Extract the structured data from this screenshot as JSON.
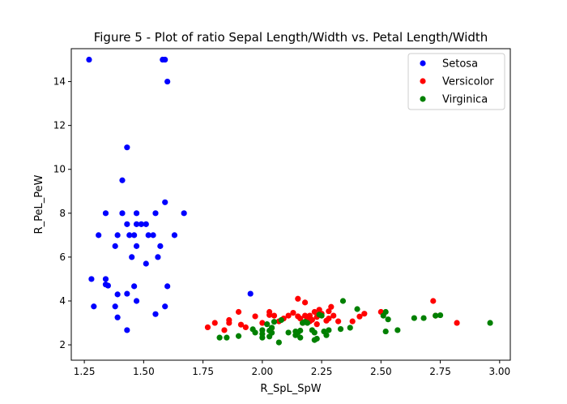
{
  "chart_data": {
    "type": "scatter",
    "title": "Figure 5 - Plot of ratio Sepal Length/Width vs. Petal Length/Width",
    "xlabel": "R_SpL_SpW",
    "ylabel": "R_PeL_PeW",
    "xlim": [
      1.195,
      3.045
    ],
    "ylim": [
      1.3,
      15.5
    ],
    "xticks": [
      1.25,
      1.5,
      1.75,
      2.0,
      2.25,
      2.5,
      2.75,
      3.0
    ],
    "xtick_labels": [
      "1.25",
      "1.50",
      "1.75",
      "2.00",
      "2.25",
      "2.50",
      "2.75",
      "3.00"
    ],
    "yticks": [
      2,
      4,
      6,
      8,
      10,
      12,
      14
    ],
    "ytick_labels": [
      "2",
      "4",
      "6",
      "8",
      "10",
      "12",
      "14"
    ],
    "grid": false,
    "legend_position": "top-right",
    "series": [
      {
        "name": "Setosa",
        "color": "#0000ff",
        "points": [
          [
            1.27,
            15.0
          ],
          [
            1.58,
            15.0
          ],
          [
            1.59,
            15.0
          ],
          [
            1.6,
            14.0
          ],
          [
            1.43,
            11.0
          ],
          [
            1.41,
            9.5
          ],
          [
            1.59,
            8.5
          ],
          [
            1.34,
            8.0
          ],
          [
            1.41,
            8.0
          ],
          [
            1.47,
            8.0
          ],
          [
            1.55,
            8.0
          ],
          [
            1.67,
            8.0
          ],
          [
            1.43,
            7.5
          ],
          [
            1.47,
            7.5
          ],
          [
            1.49,
            7.5
          ],
          [
            1.51,
            7.5
          ],
          [
            1.31,
            7.0
          ],
          [
            1.39,
            7.0
          ],
          [
            1.44,
            7.0
          ],
          [
            1.46,
            7.0
          ],
          [
            1.52,
            7.0
          ],
          [
            1.54,
            7.0
          ],
          [
            1.63,
            7.0
          ],
          [
            1.38,
            6.5
          ],
          [
            1.47,
            6.5
          ],
          [
            1.57,
            6.5
          ],
          [
            1.45,
            6.0
          ],
          [
            1.56,
            6.0
          ],
          [
            1.51,
            5.7
          ],
          [
            1.28,
            5.0
          ],
          [
            1.34,
            5.0
          ],
          [
            1.34,
            4.75
          ],
          [
            1.35,
            4.7
          ],
          [
            1.46,
            4.67
          ],
          [
            1.6,
            4.67
          ],
          [
            1.95,
            4.33
          ],
          [
            1.39,
            4.3
          ],
          [
            1.43,
            4.33
          ],
          [
            1.47,
            4.0
          ],
          [
            1.29,
            3.75
          ],
          [
            1.38,
            3.75
          ],
          [
            1.59,
            3.75
          ],
          [
            1.55,
            3.4
          ],
          [
            1.39,
            3.25
          ],
          [
            1.43,
            2.67
          ]
        ]
      },
      {
        "name": "Versicolor",
        "color": "#ff0000",
        "points": [
          [
            1.77,
            2.8
          ],
          [
            1.8,
            3.0
          ],
          [
            1.84,
            2.67
          ],
          [
            1.86,
            3.13
          ],
          [
            1.86,
            3.0
          ],
          [
            1.9,
            3.5
          ],
          [
            1.91,
            2.92
          ],
          [
            1.93,
            2.8
          ],
          [
            1.97,
            3.3
          ],
          [
            2.0,
            3.0
          ],
          [
            2.03,
            3.5
          ],
          [
            2.03,
            3.36
          ],
          [
            2.04,
            2.77
          ],
          [
            2.05,
            3.33
          ],
          [
            2.07,
            3.07
          ],
          [
            2.09,
            3.2
          ],
          [
            2.11,
            3.33
          ],
          [
            2.13,
            3.46
          ],
          [
            2.15,
            4.1
          ],
          [
            2.15,
            3.3
          ],
          [
            2.16,
            3.2
          ],
          [
            2.17,
            3.0
          ],
          [
            2.18,
            3.93
          ],
          [
            2.18,
            3.33
          ],
          [
            2.19,
            3.2
          ],
          [
            2.2,
            3.07
          ],
          [
            2.2,
            3.33
          ],
          [
            2.21,
            3.14
          ],
          [
            2.22,
            3.5
          ],
          [
            2.23,
            3.27
          ],
          [
            2.23,
            2.94
          ],
          [
            2.24,
            3.6
          ],
          [
            2.25,
            3.42
          ],
          [
            2.27,
            3.1
          ],
          [
            2.28,
            3.2
          ],
          [
            2.28,
            3.53
          ],
          [
            2.29,
            3.73
          ],
          [
            2.3,
            3.33
          ],
          [
            2.32,
            3.07
          ],
          [
            2.38,
            3.07
          ],
          [
            2.41,
            3.29
          ],
          [
            2.43,
            3.42
          ],
          [
            2.5,
            3.5
          ],
          [
            2.72,
            4.0
          ],
          [
            2.73,
            3.33
          ],
          [
            2.82,
            3.0
          ]
        ]
      },
      {
        "name": "Virginica",
        "color": "#008000",
        "points": [
          [
            1.82,
            2.33
          ],
          [
            1.85,
            2.33
          ],
          [
            1.9,
            2.4
          ],
          [
            1.96,
            2.71
          ],
          [
            1.97,
            2.56
          ],
          [
            2.0,
            2.33
          ],
          [
            2.0,
            2.5
          ],
          [
            2.0,
            2.67
          ],
          [
            2.02,
            2.94
          ],
          [
            2.03,
            2.38
          ],
          [
            2.03,
            2.65
          ],
          [
            2.04,
            2.55
          ],
          [
            2.04,
            2.78
          ],
          [
            2.05,
            3.05
          ],
          [
            2.07,
            2.11
          ],
          [
            2.08,
            3.13
          ],
          [
            2.11,
            2.56
          ],
          [
            2.14,
            2.61
          ],
          [
            2.14,
            2.44
          ],
          [
            2.15,
            2.56
          ],
          [
            2.16,
            2.65
          ],
          [
            2.16,
            2.33
          ],
          [
            2.17,
            3.0
          ],
          [
            2.18,
            3.05
          ],
          [
            2.19,
            3.0
          ],
          [
            2.21,
            2.67
          ],
          [
            2.22,
            2.22
          ],
          [
            2.22,
            2.56
          ],
          [
            2.23,
            2.28
          ],
          [
            2.24,
            3.38
          ],
          [
            2.25,
            3.33
          ],
          [
            2.26,
            2.61
          ],
          [
            2.27,
            2.44
          ],
          [
            2.28,
            2.67
          ],
          [
            2.33,
            2.72
          ],
          [
            2.34,
            4.0
          ],
          [
            2.37,
            2.78
          ],
          [
            2.4,
            3.63
          ],
          [
            2.51,
            3.33
          ],
          [
            2.52,
            3.5
          ],
          [
            2.52,
            2.61
          ],
          [
            2.53,
            3.16
          ],
          [
            2.57,
            2.67
          ],
          [
            2.64,
            3.22
          ],
          [
            2.68,
            3.22
          ],
          [
            2.73,
            3.33
          ],
          [
            2.75,
            3.35
          ],
          [
            2.96,
            3.0
          ]
        ]
      }
    ]
  }
}
